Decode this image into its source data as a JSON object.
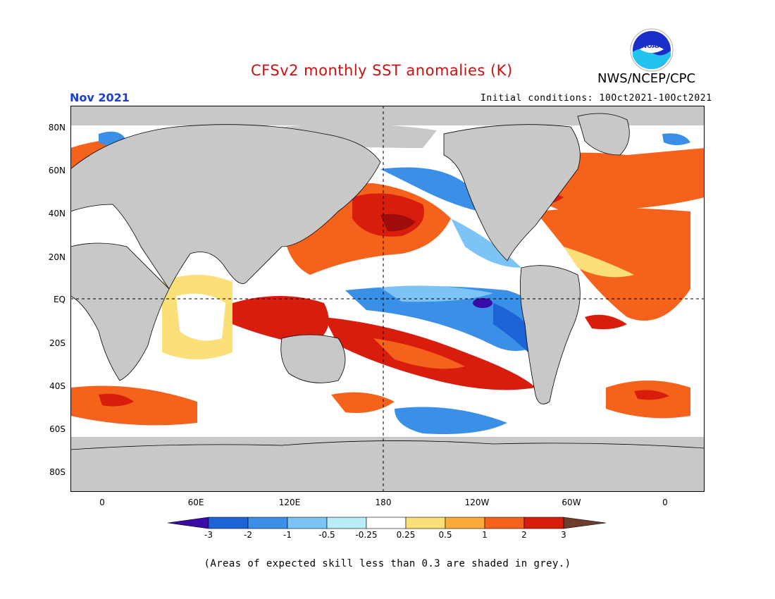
{
  "header": {
    "title": "CFSv2 monthly SST anomalies (K)",
    "agency": "NWS/NCEP/CPC",
    "logo_text": "NOAA",
    "month": "Nov 2021",
    "initial_conditions": "Initial conditions: 10Oct2021-10Oct2021"
  },
  "colors": {
    "title": "#cc1111",
    "month": "#1a3fd8",
    "land": "#c8c8c8",
    "neg3": "#3a0aa6",
    "neg2": "#1c63d6",
    "neg1": "#3a8fe6",
    "neg05": "#7cc3f6",
    "neg025": "#b8ecf6",
    "neutral": "#ffffff",
    "pos025": "#fbe07a",
    "pos05": "#fbab3b",
    "pos1": "#f5621b",
    "pos2": "#d81d0c",
    "pos3": "#a00c0c",
    "above3": "#6e3c2a"
  },
  "map": {
    "lat_labels": [
      "80N",
      "60N",
      "40N",
      "20N",
      "EQ",
      "20S",
      "40S",
      "60S",
      "80S"
    ],
    "lon_labels": [
      "0",
      "60E",
      "120E",
      "180",
      "120W",
      "60W",
      "0"
    ]
  },
  "colorbar": {
    "labels": [
      "-3",
      "-2",
      "-1",
      "-0.5",
      "-0.25",
      "0.25",
      "0.5",
      "1",
      "2",
      "3"
    ]
  },
  "footer": {
    "note": "(Areas of expected skill less than 0.3 are shaded in grey.)"
  }
}
